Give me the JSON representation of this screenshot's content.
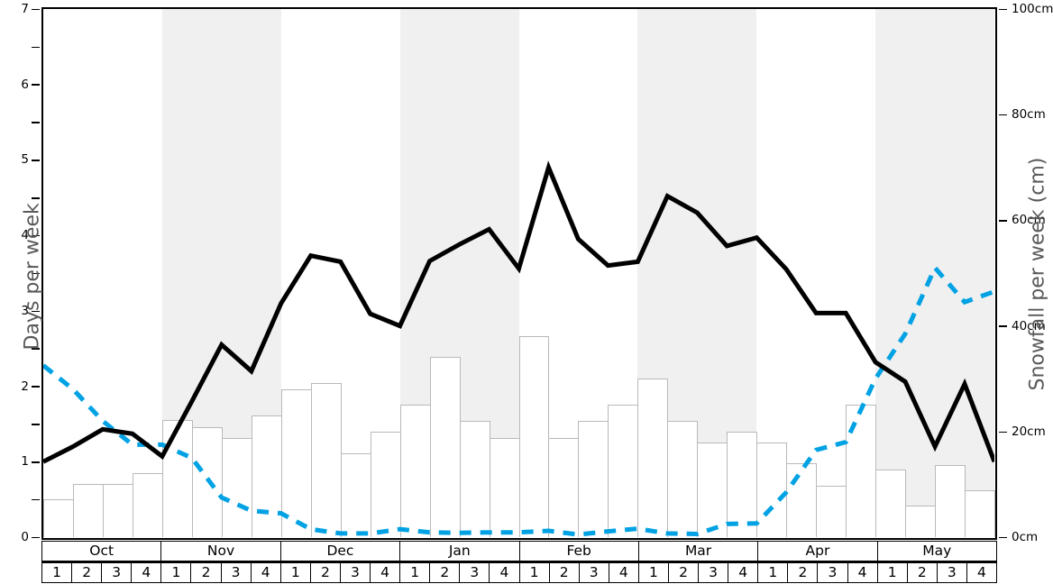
{
  "chart_data": {
    "type": "line",
    "description": "Weekly snow chart: solid black line = days per week (left axis), dashed blue line = snowfall per week in cm (right axis), white bars = weekly values, alternating gray month bands",
    "months": [
      "Oct",
      "Nov",
      "Dec",
      "Jan",
      "Feb",
      "Mar",
      "Apr",
      "May"
    ],
    "weeks_per_month": [
      "1",
      "2",
      "3",
      "4"
    ],
    "shaded_months": [
      "Nov",
      "Jan",
      "Mar",
      "May"
    ],
    "left_axis": {
      "label": "Days per week",
      "min": 0,
      "max": 7,
      "tick_labels": [
        "0",
        "1",
        "2",
        "3",
        "4",
        "5",
        "6",
        "7"
      ],
      "minor_tick_step": 0.5
    },
    "right_axis": {
      "label": "Snowfall per week (cm)",
      "min": 0,
      "max": 100,
      "tick_labels": [
        "0cm",
        "20cm",
        "40cm",
        "60cm",
        "80cm",
        "100cm"
      ],
      "tick_values": [
        0,
        20,
        40,
        60,
        80,
        100
      ]
    },
    "series": [
      {
        "name": "days-per-week-line",
        "type": "line",
        "style": "solid",
        "color": "#000000",
        "axis": "left",
        "values": [
          1.0,
          1.2,
          1.43,
          1.37,
          1.07,
          1.8,
          2.55,
          2.2,
          3.1,
          3.73,
          3.65,
          2.96,
          2.8,
          3.66,
          3.88,
          4.08,
          3.56,
          4.9,
          3.95,
          3.6,
          3.65,
          4.52,
          4.3,
          3.86,
          3.97,
          3.55,
          2.97,
          2.97,
          2.32,
          2.06,
          1.2,
          2.03,
          1.0
        ]
      },
      {
        "name": "snowfall-per-week-line",
        "type": "line",
        "style": "dashed",
        "color": "#00a2e4",
        "axis": "right",
        "values": [
          32.5,
          28,
          22,
          17.5,
          17.5,
          15,
          7.5,
          5,
          4.5,
          1.5,
          0.7,
          0.7,
          1.5,
          0.9,
          0.8,
          0.9,
          0.9,
          1.2,
          0.5,
          1.1,
          1.6,
          0.7,
          0.6,
          2.5,
          2.6,
          8.5,
          16.5,
          18,
          30,
          38.5,
          51,
          44.5,
          46.5
        ]
      },
      {
        "name": "weekly-bars",
        "type": "bar",
        "axis": "left",
        "fill": "#ffffff",
        "border": "#b9b9b9",
        "values": [
          0.5,
          0.7,
          0.7,
          0.85,
          1.55,
          1.46,
          1.32,
          1.61,
          1.96,
          2.04,
          1.11,
          1.4,
          1.76,
          2.39,
          1.54,
          1.32,
          2.66,
          1.32,
          1.54,
          1.76,
          2.1,
          1.54,
          1.25,
          1.4,
          1.25,
          0.98,
          0.68,
          1.76,
          0.9,
          0.42,
          0.96,
          0.62
        ]
      }
    ],
    "colors": {
      "band": "#f0f0f0",
      "frame": "#000000",
      "axis_title": "#595959"
    }
  }
}
